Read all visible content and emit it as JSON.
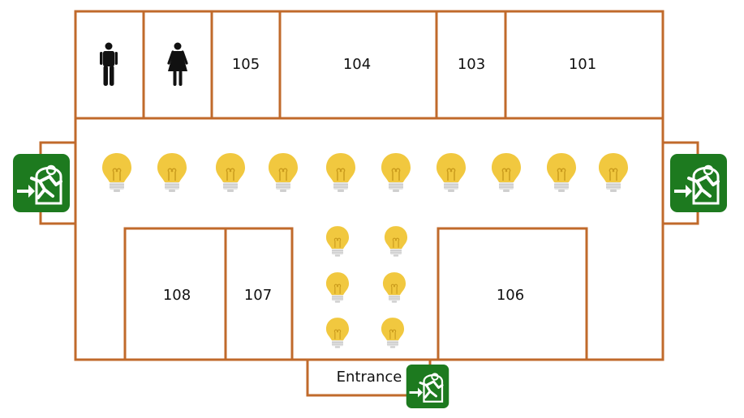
{
  "rooms": {
    "r105": "105",
    "r104": "104",
    "r103": "103",
    "r101": "101",
    "r108": "108",
    "r107": "107",
    "r106": "106"
  },
  "entrance": "Entrance",
  "icons": {
    "mens_restroom": "man-icon",
    "womens_restroom": "woman-icon",
    "light": "light-bulb-icon",
    "exit": "emergency-exit-icon"
  },
  "colors": {
    "wall": "#c06a2b",
    "bulb": "#f1c83f",
    "exit_sign": "#1d7a1f"
  }
}
